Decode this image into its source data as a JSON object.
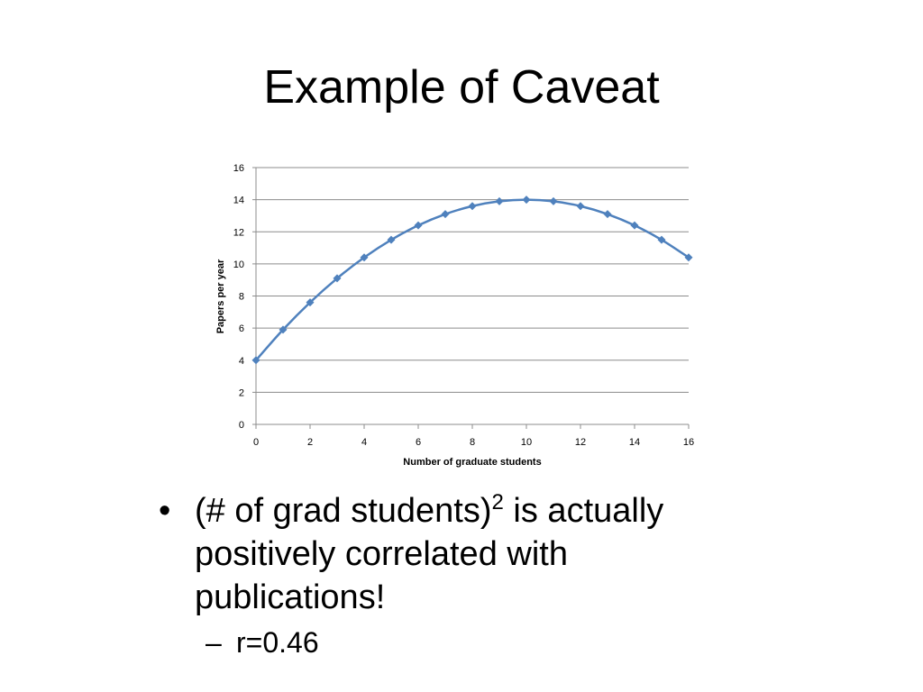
{
  "slide": {
    "title": "Example of Caveat",
    "bullet": {
      "text_before": "(# of grad students)",
      "superscript": "2",
      "text_after": " is actually positively correlated with publications!"
    },
    "sub_bullet": {
      "dash": "–",
      "text": "r=0.46"
    }
  },
  "chart_data": {
    "type": "line",
    "title": "",
    "xlabel": "Number of graduate students",
    "ylabel": "Papers per year",
    "xlim": [
      0,
      16
    ],
    "ylim": [
      0,
      16
    ],
    "xticks": [
      0,
      2,
      4,
      6,
      8,
      10,
      12,
      14,
      16
    ],
    "yticks": [
      0,
      2,
      4,
      6,
      8,
      10,
      12,
      14,
      16
    ],
    "grid": "horizontal",
    "legend": "none",
    "series_color": "#4f81bd",
    "series": [
      {
        "x": [
          0,
          1,
          2,
          3,
          4,
          5,
          6,
          7,
          8,
          9,
          10,
          11,
          12,
          13,
          14,
          15,
          16
        ],
        "y": [
          4,
          5.9,
          7.6,
          9.1,
          10.4,
          11.5,
          12.4,
          13.1,
          13.6,
          13.9,
          14,
          13.9,
          13.6,
          13.1,
          12.4,
          11.5,
          10.4
        ]
      }
    ]
  }
}
